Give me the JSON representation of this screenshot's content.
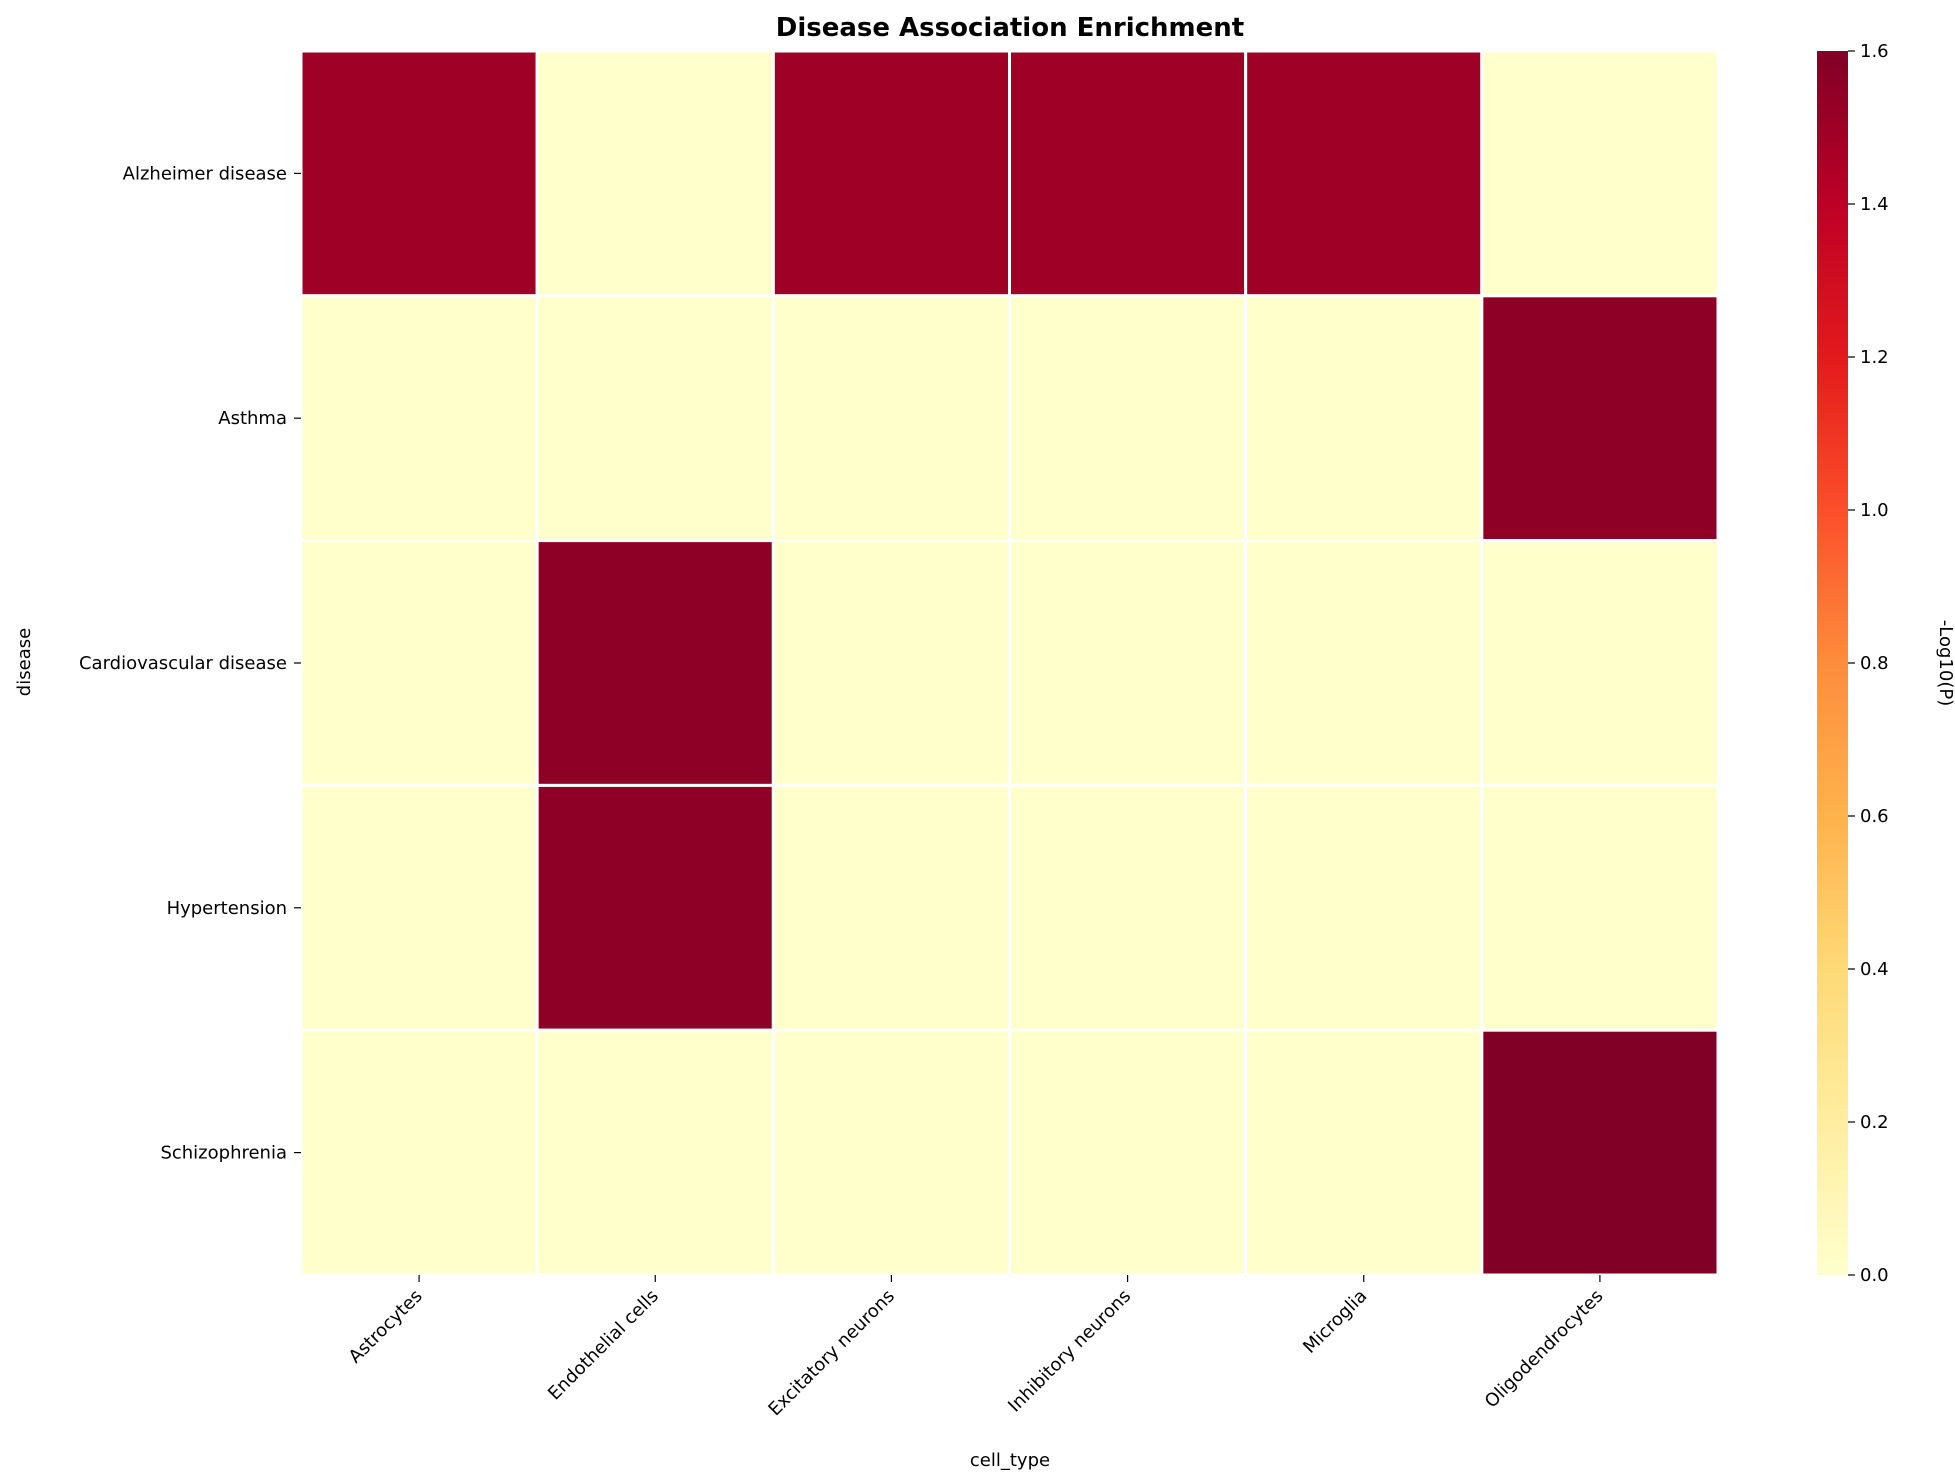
{
  "chart_data": {
    "type": "heatmap",
    "title": "Disease Association Enrichment",
    "xlabel": "cell_type",
    "ylabel": "disease",
    "x_categories": [
      "Astrocytes",
      "Endothelial cells",
      "Excitatory neurons",
      "Inhibitory neurons",
      "Microglia",
      "Oligodendrocytes"
    ],
    "y_categories": [
      "Alzheimer disease",
      "Asthma",
      "Cardiovascular disease",
      "Hypertension",
      "Schizophrenia"
    ],
    "values": [
      [
        1.5,
        0.0,
        1.5,
        1.5,
        1.5,
        0.0
      ],
      [
        0.0,
        0.0,
        0.0,
        0.0,
        0.0,
        1.55
      ],
      [
        0.0,
        1.55,
        0.0,
        0.0,
        0.0,
        0.0
      ],
      [
        0.0,
        1.55,
        0.0,
        0.0,
        0.0,
        0.0
      ],
      [
        0.0,
        0.0,
        0.0,
        0.0,
        0.0,
        1.6
      ]
    ],
    "colorbar": {
      "label": "-Log10(P)",
      "range": [
        0.0,
        1.6
      ],
      "ticks": [
        "0.0",
        "0.2",
        "0.4",
        "0.6",
        "0.8",
        "1.0",
        "1.2",
        "1.4",
        "1.6"
      ],
      "colormap": "YlOrRd",
      "colors": [
        "#ffffcc",
        "#ffeda0",
        "#fed976",
        "#feb24c",
        "#fd8d3c",
        "#fc4e2a",
        "#e31a1c",
        "#bd0026",
        "#800026"
      ]
    },
    "cell_border_color": "#ffffff",
    "grid": false
  }
}
